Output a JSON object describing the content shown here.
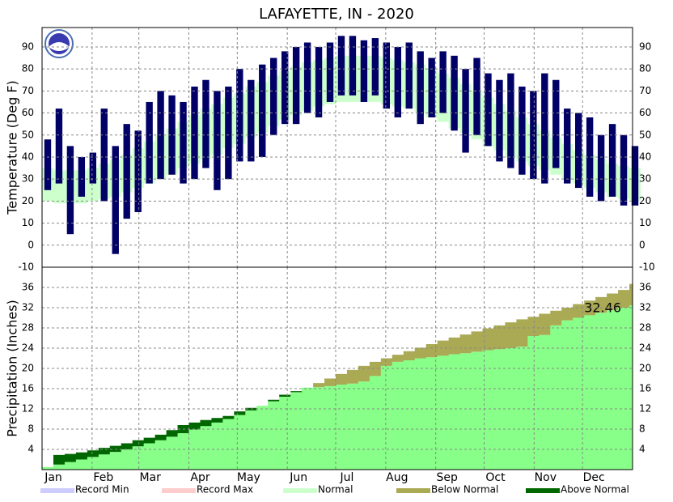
{
  "chart_data": [
    {
      "type": "range-bar",
      "title": "LAFAYETTE, IN - 2020",
      "y_label": "Temperature (Deg F)",
      "x": [
        0,
        7,
        14,
        21,
        28,
        35,
        42,
        49,
        56,
        63,
        70,
        77,
        84,
        91,
        98,
        105,
        112,
        119,
        126,
        133,
        140,
        147,
        154,
        161,
        168,
        175,
        182,
        189,
        196,
        203,
        210,
        217,
        224,
        231,
        238,
        245,
        252,
        259,
        266,
        273,
        280,
        287,
        294,
        301,
        308,
        315,
        322,
        329,
        336,
        343,
        350,
        357,
        364
      ],
      "high": [
        48,
        62,
        45,
        40,
        42,
        62,
        45,
        55,
        52,
        65,
        70,
        68,
        65,
        72,
        75,
        70,
        72,
        80,
        75,
        82,
        85,
        88,
        90,
        92,
        90,
        92,
        95,
        95,
        93,
        94,
        92,
        90,
        92,
        88,
        85,
        88,
        86,
        80,
        85,
        78,
        75,
        78,
        72,
        70,
        78,
        75,
        62,
        60,
        58,
        50,
        55,
        50,
        45
      ],
      "low": [
        25,
        28,
        5,
        22,
        28,
        20,
        -4,
        12,
        15,
        28,
        30,
        32,
        28,
        30,
        35,
        25,
        30,
        38,
        38,
        40,
        50,
        55,
        55,
        60,
        58,
        65,
        68,
        68,
        65,
        68,
        62,
        58,
        62,
        55,
        58,
        60,
        52,
        42,
        50,
        45,
        38,
        35,
        32,
        30,
        28,
        35,
        28,
        26,
        22,
        20,
        22,
        18,
        18
      ],
      "normal_high": [
        35,
        34,
        34,
        34,
        35,
        37,
        39,
        41,
        44,
        47,
        50,
        53,
        56,
        59,
        62,
        64,
        67,
        69,
        72,
        74,
        77,
        79,
        81,
        83,
        84,
        85,
        86,
        86,
        86,
        86,
        85,
        84,
        83,
        82,
        80,
        78,
        76,
        73,
        70,
        67,
        64,
        61,
        58,
        55,
        52,
        49,
        46,
        43,
        41,
        39,
        37,
        36,
        35
      ],
      "normal_low": [
        20,
        19,
        19,
        19,
        20,
        21,
        22,
        24,
        26,
        28,
        30,
        32,
        35,
        37,
        39,
        41,
        44,
        46,
        49,
        51,
        54,
        57,
        59,
        61,
        63,
        64,
        65,
        65,
        65,
        65,
        64,
        63,
        62,
        60,
        58,
        56,
        53,
        51,
        48,
        45,
        43,
        40,
        38,
        36,
        34,
        32,
        30,
        28,
        26,
        24,
        22,
        21,
        20
      ],
      "color": "#000066",
      "normal_color": "#ccffcc",
      "xlim": [
        0,
        366
      ],
      "xticks": [
        {
          "value": 0,
          "label": "Jan"
        },
        {
          "value": 31,
          "label": "Feb"
        },
        {
          "value": 60,
          "label": "Mar"
        },
        {
          "value": 91,
          "label": "Apr"
        },
        {
          "value": 121,
          "label": "May"
        },
        {
          "value": 152,
          "label": "Jun"
        },
        {
          "value": 182,
          "label": "Jul"
        },
        {
          "value": 213,
          "label": "Aug"
        },
        {
          "value": 244,
          "label": "Sep"
        },
        {
          "value": 274,
          "label": "Oct"
        },
        {
          "value": 305,
          "label": "Nov"
        },
        {
          "value": 335,
          "label": "Dec"
        }
      ],
      "ylim": [
        -10,
        98.8
      ],
      "yticks": [
        -10,
        0,
        10,
        20,
        30,
        40,
        50,
        60,
        70,
        80,
        90
      ],
      "grid": true
    },
    {
      "type": "cumulative-area",
      "y_label": "Precipitation (Inches)",
      "x": [
        0,
        7,
        14,
        21,
        28,
        35,
        42,
        49,
        56,
        63,
        70,
        77,
        84,
        91,
        98,
        105,
        112,
        119,
        126,
        133,
        140,
        147,
        154,
        161,
        168,
        175,
        182,
        189,
        196,
        203,
        210,
        217,
        224,
        231,
        238,
        245,
        252,
        259,
        266,
        273,
        280,
        287,
        294,
        301,
        308,
        315,
        322,
        329,
        336,
        343,
        350,
        357,
        364
      ],
      "values": [
        0.5,
        2.9,
        3.1,
        3.4,
        3.8,
        4.3,
        4.7,
        5.2,
        5.8,
        6.3,
        6.9,
        7.8,
        8.8,
        9.3,
        9.8,
        10.2,
        10.6,
        11.5,
        12.2,
        12.6,
        13.8,
        14.8,
        15.5,
        16.2,
        16.3,
        16.5,
        16.8,
        17.0,
        17.4,
        18.5,
        20.5,
        21.3,
        21.6,
        22.0,
        22.2,
        22.5,
        22.8,
        23.0,
        23.3,
        23.6,
        23.8,
        24.0,
        24.3,
        26.4,
        26.6,
        28.5,
        29.5,
        30.0,
        30.5,
        31.0,
        31.5,
        32.0,
        32.46
      ],
      "normal": [
        0.5,
        1.0,
        1.5,
        2.0,
        2.5,
        3.0,
        3.5,
        4.0,
        4.6,
        5.2,
        5.8,
        6.5,
        7.2,
        7.9,
        8.6,
        9.3,
        10.0,
        10.8,
        11.7,
        12.6,
        13.5,
        14.4,
        15.3,
        16.2,
        17.1,
        18.0,
        18.9,
        19.7,
        20.5,
        21.3,
        22.0,
        22.7,
        23.4,
        24.1,
        24.8,
        25.5,
        26.1,
        26.7,
        27.3,
        27.9,
        28.5,
        29.1,
        29.7,
        30.2,
        30.8,
        31.4,
        32.0,
        32.7,
        33.4,
        34.1,
        34.8,
        35.5,
        36.7
      ],
      "color": "#88ff88",
      "above_color": "#006600",
      "below_color": "#aaaa55",
      "annotation": "32.46",
      "xlim": [
        0,
        366
      ],
      "ylim": [
        0,
        40
      ],
      "yticks": [
        4,
        8,
        12,
        16,
        20,
        24,
        28,
        32,
        36
      ],
      "grid": true
    }
  ],
  "legend": [
    {
      "name": "Record Min",
      "color": "#ccccff"
    },
    {
      "name": "Record Max",
      "color": "#ffcccc"
    },
    {
      "name": "Normal",
      "color": "#ccffcc"
    },
    {
      "name": "Below Normal",
      "color": "#aaaa55"
    },
    {
      "name": "Above Normal",
      "color": "#006600"
    }
  ]
}
